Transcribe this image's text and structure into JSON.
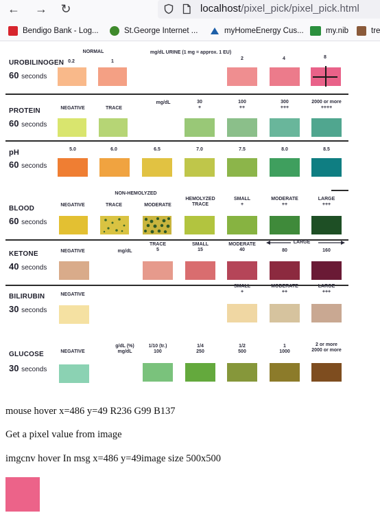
{
  "browser": {
    "url_host": "localhost",
    "url_path": "/pixel_pick/pixel_pick.html",
    "bookmarks": [
      {
        "label": "Bendigo Bank - Log...",
        "icon": "bendigo-icon",
        "color": "#d7252e"
      },
      {
        "label": "St.George Internet ...",
        "icon": "stgeorge-icon",
        "color": "#3f8a2c"
      },
      {
        "label": "myHomeEnergy Cus...",
        "icon": "myhomeenergy-icon",
        "color": "#1d5fa8"
      },
      {
        "label": "my.nib",
        "icon": "nib-icon",
        "color": "#2a8f3d"
      },
      {
        "label": "tre",
        "icon": "tre-icon",
        "color": "#8a5a3a"
      }
    ]
  },
  "chart": {
    "rows": [
      {
        "id": "urobilinogen",
        "name": "UROBILINOGEN",
        "time": "60",
        "unit": "seconds",
        "headers": [
          {
            "text": "NORMAL",
            "x": 0
          },
          {
            "text": "mg/dL URINE (1 mg = approx. 1 EU)",
            "x": 0
          }
        ],
        "pads": [
          {
            "label": "0.2",
            "color": "#f9b98a"
          },
          {
            "label": "1",
            "color": "#f4a084"
          },
          {
            "label": "2",
            "color": "#ef8e90"
          },
          {
            "label": "4",
            "color": "#ec7b8b"
          },
          {
            "label": "8",
            "color": "#e96289"
          }
        ]
      },
      {
        "id": "protein",
        "name": "PROTEIN",
        "time": "60",
        "unit": "seconds",
        "headers": [
          {
            "text": "mg/dL"
          }
        ],
        "pads": [
          {
            "label": "NEGATIVE",
            "color": "#d9e56e"
          },
          {
            "label": "TRACE",
            "color": "#b6d575"
          },
          {
            "label": "30\n+",
            "color": "#99c877"
          },
          {
            "label": "100\n++",
            "color": "#8bbf8a"
          },
          {
            "label": "300\n+++",
            "color": "#69b69b"
          },
          {
            "label": "2000 or more\n++++",
            "color": "#50a68f"
          }
        ]
      },
      {
        "id": "ph",
        "name": "pH",
        "time": "60",
        "unit": "seconds",
        "pads": [
          {
            "label": "5.0",
            "color": "#ef7e33"
          },
          {
            "label": "6.0",
            "color": "#f0a340"
          },
          {
            "label": "6.5",
            "color": "#e1c242"
          },
          {
            "label": "7.0",
            "color": "#bfc64a"
          },
          {
            "label": "7.5",
            "color": "#8cb54a"
          },
          {
            "label": "8.0",
            "color": "#3f9f5e"
          },
          {
            "label": "8.5",
            "color": "#0f7e82"
          }
        ]
      },
      {
        "id": "blood",
        "name": "BLOOD",
        "time": "60",
        "unit": "seconds",
        "headers": [
          {
            "text": "NON-HEMOLYZED"
          }
        ],
        "pads": [
          {
            "label": "NEGATIVE",
            "color": "#e3c032"
          },
          {
            "label": "TRACE",
            "color": "#d9c342"
          },
          {
            "label": "MODERATE",
            "color": "#c3b43e"
          },
          {
            "label": "HEMOLYZED\nTRACE",
            "color": "#b2c43f"
          },
          {
            "label": "SMALL\n+",
            "color": "#87b341"
          },
          {
            "label": "MODERATE\n++",
            "color": "#3f8a3a"
          },
          {
            "label": "LARGE\n+++",
            "color": "#1e4f25"
          }
        ]
      },
      {
        "id": "ketone",
        "name": "KETONE",
        "time": "40",
        "unit": "seconds",
        "headers": [
          {
            "text": "mg/dL"
          },
          {
            "text": "LARGE"
          }
        ],
        "pads": [
          {
            "label": "NEGATIVE",
            "color": "#d9ab8a"
          },
          {
            "label": "TRACE\n5",
            "color": "#e69a8c"
          },
          {
            "label": "SMALL\n15",
            "color": "#d96d6f"
          },
          {
            "label": "MODERATE\n40",
            "color": "#b54558"
          },
          {
            "label": "80",
            "color": "#8c2a3f"
          },
          {
            "label": "160",
            "color": "#6a1a35"
          }
        ]
      },
      {
        "id": "bilirubin",
        "name": "BILIRUBIN",
        "time": "30",
        "unit": "seconds",
        "pads": [
          {
            "label": "NEGATIVE",
            "color": "#f5e1a2"
          },
          {
            "label": "SMALL\n+",
            "color": "#f0d7a3"
          },
          {
            "label": "MODERATE\n++",
            "color": "#d6c39e"
          },
          {
            "label": "LARGE\n+++",
            "color": "#c9a892"
          }
        ]
      },
      {
        "id": "glucose",
        "name": "GLUCOSE",
        "time": "30",
        "unit": "seconds",
        "headers": [
          {
            "text": "g/dL (%)\nmg/dL"
          }
        ],
        "pads": [
          {
            "label": "NEGATIVE",
            "color": "#8bd2b3"
          },
          {
            "label": "1/10 (tr.)\n100",
            "color": "#7ac27c"
          },
          {
            "label": "1/4\n250",
            "color": "#64a93d"
          },
          {
            "label": "1/2\n500",
            "color": "#86973a"
          },
          {
            "label": "1\n1000",
            "color": "#8c7b2a"
          },
          {
            "label": "2 or more\n2000 or more",
            "color": "#7e4d1f"
          }
        ]
      }
    ]
  },
  "messages": {
    "hover": "mouse hover x=486 y=49 R236 G99 B137",
    "title": "Get a pixel value from image",
    "imgcnv": "imgcnv hover In msg x=486 y=49image size 500x500"
  },
  "picked_color": "#ec6389"
}
